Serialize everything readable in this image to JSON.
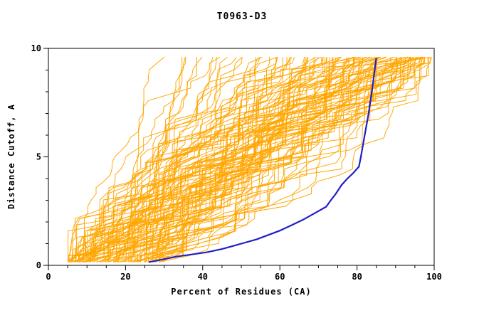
{
  "title": "T0963-D3",
  "chart_data": {
    "type": "line",
    "title": "T0963-D3",
    "xlabel": "Percent of Residues (CA)",
    "ylabel": "Distance Cutoff, A",
    "xlim": [
      0,
      100
    ],
    "ylim": [
      0,
      10
    ],
    "x_ticks": [
      0,
      20,
      40,
      60,
      80,
      100
    ],
    "y_ticks": [
      0,
      5,
      10
    ],
    "x_minor_step": 5,
    "y_minor_step": 1,
    "grid": false,
    "legend": "none",
    "colors": {
      "ensemble": "#FFA500",
      "highlight": "#1F1FC8",
      "axis": "#000000",
      "background": "#FFFFFF"
    },
    "highlight_series": {
      "name": "selected-model-curve",
      "points": [
        [
          26,
          0.15
        ],
        [
          29,
          0.25
        ],
        [
          33,
          0.4
        ],
        [
          37,
          0.5
        ],
        [
          41,
          0.6
        ],
        [
          45,
          0.75
        ],
        [
          48,
          0.9
        ],
        [
          51,
          1.05
        ],
        [
          54,
          1.2
        ],
        [
          57,
          1.4
        ],
        [
          60,
          1.6
        ],
        [
          63,
          1.85
        ],
        [
          66,
          2.1
        ],
        [
          69,
          2.4
        ],
        [
          72,
          2.7
        ],
        [
          73,
          2.95
        ],
        [
          74.5,
          3.3
        ],
        [
          76,
          3.7
        ],
        [
          77.5,
          4.0
        ],
        [
          79,
          4.25
        ],
        [
          80.5,
          4.55
        ],
        [
          81,
          5.0
        ],
        [
          81.5,
          5.5
        ],
        [
          82,
          6.0
        ],
        [
          82.5,
          6.5
        ],
        [
          83,
          7.0
        ],
        [
          83.5,
          7.6
        ],
        [
          84,
          8.2
        ],
        [
          84.5,
          8.9
        ],
        [
          85,
          9.55
        ]
      ]
    },
    "ensemble_series": {
      "name": "prediction-curves",
      "count": 115,
      "seed": 1963,
      "points_per_curve": 34,
      "y_start": 0.15,
      "y_end": 9.6,
      "x_start_range": [
        5,
        30
      ],
      "x_end_range": [
        15,
        100
      ]
    }
  }
}
